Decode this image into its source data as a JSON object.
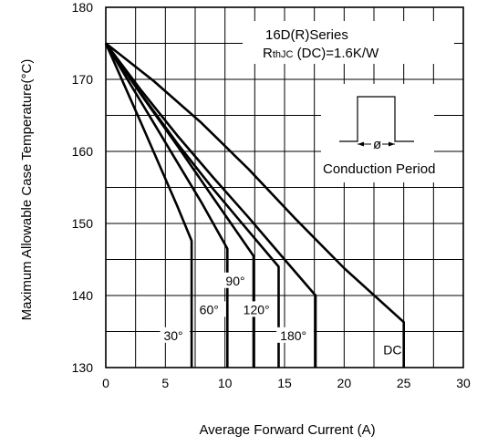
{
  "chart_data": {
    "type": "line",
    "title": "",
    "xlabel": "Average Forward Current (A)",
    "ylabel": "Maximum Allowable Case Temperature(°C)",
    "xlim": [
      0,
      30
    ],
    "ylim": [
      130,
      180
    ],
    "xticks": [
      "0",
      "5",
      "10",
      "15",
      "20",
      "25",
      "30"
    ],
    "yticks": [
      "130",
      "140",
      "150",
      "160",
      "170",
      "180"
    ],
    "grid": true,
    "annotations": {
      "series_name": "16D(R)Series",
      "rth_prefix": "R",
      "rth_sub": "thJC",
      "rth_value": " (DC)=1.6K/W",
      "inset_symbol": "ø",
      "inset_caption": "Conduction Period"
    },
    "series": [
      {
        "name": "30°",
        "x": [
          0,
          1.5,
          3,
          4.5,
          6,
          7.2,
          7.2
        ],
        "y": [
          175,
          169.4,
          163.8,
          158.1,
          152.4,
          147.6,
          130
        ]
      },
      {
        "name": "60°",
        "x": [
          0,
          2,
          4,
          6,
          8,
          10.2,
          10.2
        ],
        "y": [
          175,
          169.5,
          164.0,
          158.5,
          153.0,
          146.5,
          130
        ]
      },
      {
        "name": "90°",
        "x": [
          0,
          3,
          6,
          9,
          12.4,
          12.4
        ],
        "y": [
          175,
          167.8,
          160.8,
          153.6,
          145.5,
          130
        ]
      },
      {
        "name": "120°",
        "x": [
          0,
          3,
          6,
          9,
          12,
          14.5,
          14.5
        ],
        "y": [
          175,
          167.9,
          161.1,
          154.8,
          148.9,
          144.0,
          130
        ]
      },
      {
        "name": "180°",
        "x": [
          0,
          3,
          6,
          9,
          12,
          15,
          17.6,
          17.6
        ],
        "y": [
          175,
          168.4,
          162.2,
          156.4,
          150.8,
          145.0,
          140.0,
          130
        ]
      },
      {
        "name": "DC",
        "x": [
          0,
          4,
          8,
          12,
          16,
          20,
          25,
          25
        ],
        "y": [
          175,
          169.8,
          164.0,
          157.5,
          150.5,
          143.8,
          136.3,
          130
        ]
      }
    ],
    "curve_labels": [
      {
        "text": "30°",
        "x": 7.2,
        "y": 134.2
      },
      {
        "text": "60°",
        "x": 10.2,
        "y": 137.8
      },
      {
        "text": "90°",
        "x": 12.4,
        "y": 141.8
      },
      {
        "text": "120°",
        "x": 14.5,
        "y": 137.8
      },
      {
        "text": "180°",
        "x": 17.6,
        "y": 134.2
      },
      {
        "text": "DC",
        "x": 25,
        "y": 132.2
      }
    ]
  }
}
